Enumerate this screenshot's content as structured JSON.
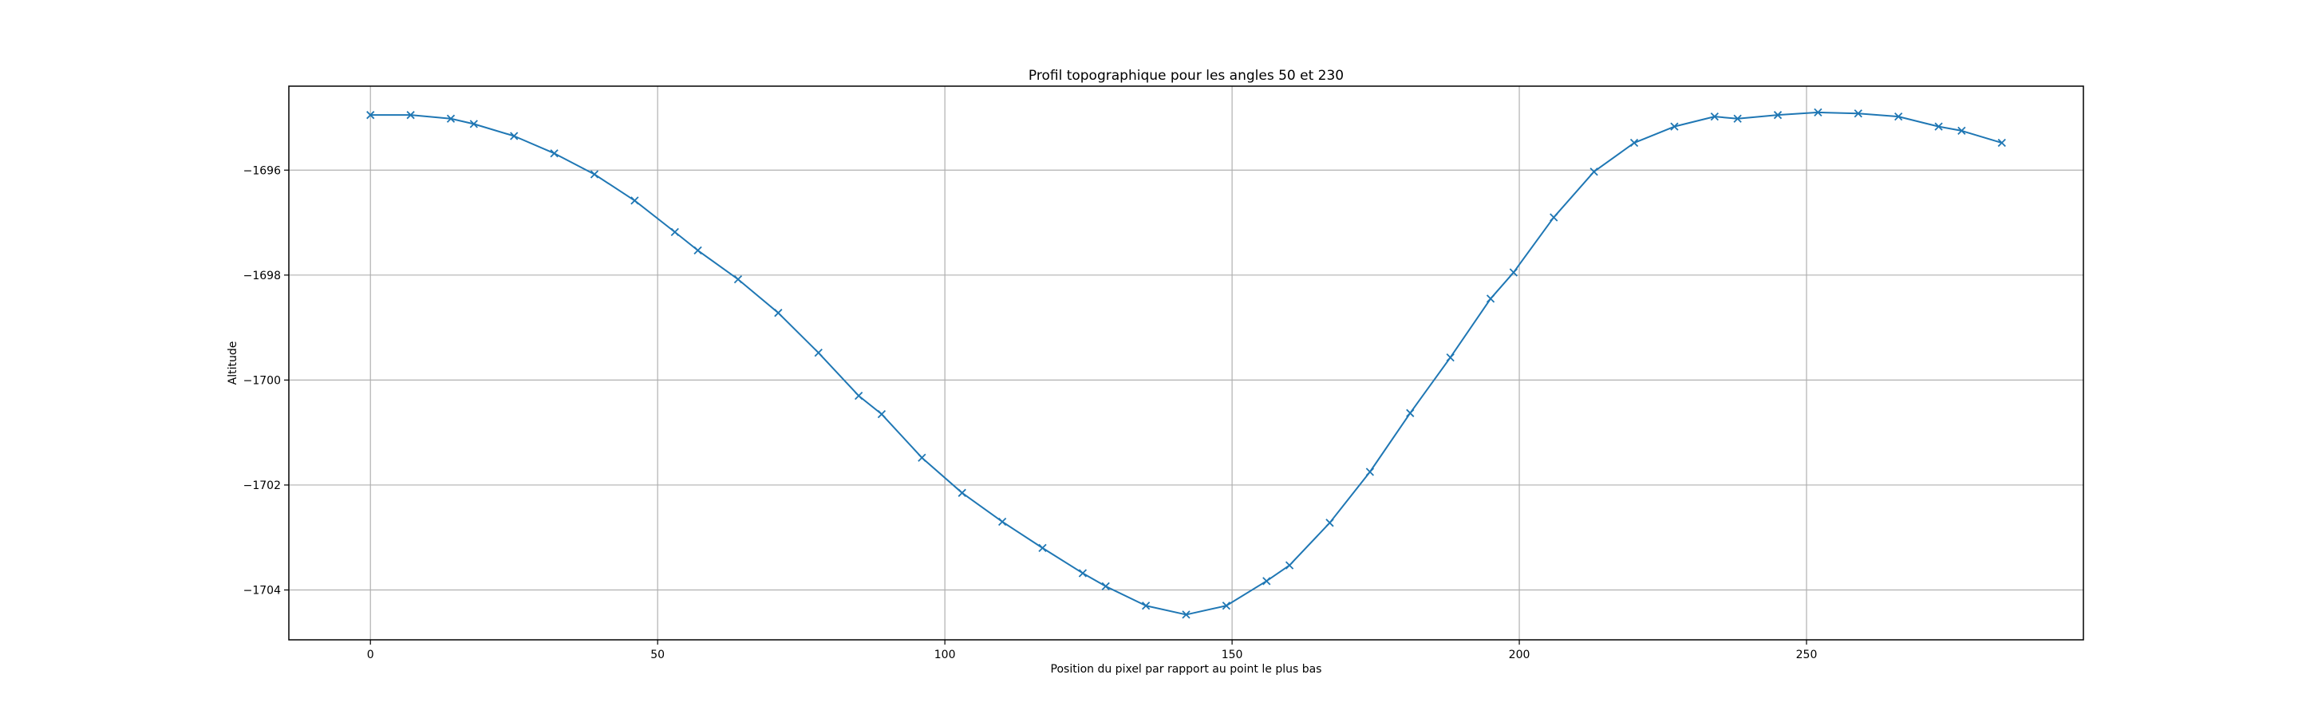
{
  "chart_data": {
    "type": "line",
    "title": "Profil topographique pour les angles 50 et 230",
    "xlabel": "Position du pixel par rapport au point le plus bas",
    "ylabel": "Altitude",
    "xlim": [
      -14.2,
      298.2
    ],
    "ylim": [
      -1704.95,
      -1694.4
    ],
    "grid": true,
    "x_ticks": [
      0,
      50,
      100,
      150,
      200,
      250
    ],
    "y_ticks": [
      -1704,
      -1702,
      -1700,
      -1698,
      -1696
    ],
    "tick_labels_x": [
      "0",
      "50",
      "100",
      "150",
      "200",
      "250"
    ],
    "tick_labels_y": [
      "−1704",
      "−1702",
      "−1700",
      "−1698",
      "−1696"
    ],
    "series": [
      {
        "color": "#1f77b4",
        "marker": "x",
        "x": [
          0,
          7,
          14,
          18,
          25,
          32,
          39,
          46,
          53,
          57,
          64,
          71,
          78,
          85,
          89,
          96,
          103,
          110,
          117,
          124,
          128,
          135,
          142,
          149,
          156,
          160,
          167,
          174,
          181,
          188,
          195,
          199,
          206,
          213,
          220,
          227,
          234,
          238,
          245,
          252,
          259,
          266,
          273,
          277,
          284
        ],
        "y": [
          -1694.95,
          -1694.95,
          -1695.02,
          -1695.12,
          -1695.35,
          -1695.68,
          -1696.08,
          -1696.58,
          -1697.18,
          -1697.53,
          -1698.08,
          -1698.72,
          -1699.48,
          -1700.3,
          -1700.65,
          -1701.48,
          -1702.15,
          -1702.7,
          -1703.2,
          -1703.68,
          -1703.93,
          -1704.3,
          -1704.47,
          -1704.3,
          -1703.83,
          -1703.53,
          -1702.72,
          -1701.75,
          -1700.63,
          -1699.57,
          -1698.45,
          -1697.95,
          -1696.9,
          -1696.03,
          -1695.48,
          -1695.17,
          -1694.98,
          -1695.02,
          -1694.95,
          -1694.9,
          -1694.92,
          -1694.98,
          -1695.17,
          -1695.25,
          -1695.48
        ]
      }
    ]
  }
}
